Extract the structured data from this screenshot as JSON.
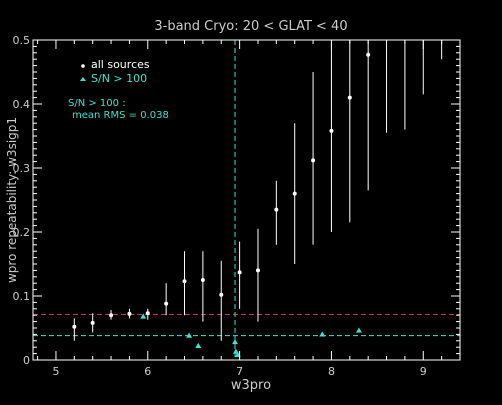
{
  "chart_data": {
    "type": "scatter",
    "title": "3-band Cryo:  20 < GLAT < 40",
    "xlabel": "w3pro",
    "ylabel": "wpro repeatability: w3sigp1",
    "xlim": [
      4.75,
      9.4
    ],
    "ylim": [
      0,
      0.5
    ],
    "x_ticks": [
      5,
      6,
      7,
      8,
      9
    ],
    "y_ticks": [
      0,
      0.1,
      0.2,
      0.3,
      0.4,
      0.5
    ],
    "x_tick_labels": [
      "5",
      "6",
      "7",
      "8",
      "9"
    ],
    "y_tick_labels": [
      "0",
      "0.1",
      "0.2",
      "0.3",
      "0.4",
      "0.5"
    ],
    "legend": {
      "position": "top-left",
      "entries": [
        {
          "label": "all sources",
          "marker": "dot",
          "color": "#ffffff"
        },
        {
          "label": "S/N > 100",
          "marker": "triangle",
          "color": "#40e0d0"
        }
      ]
    },
    "annotation": {
      "lines": [
        "S/N > 100 :",
        "mean RMS =  0.038"
      ],
      "color": "#40e0d0"
    },
    "series": [
      {
        "name": "all sources",
        "color": "#ffffff",
        "marker": "dot",
        "points": [
          {
            "x": 5.2,
            "y": 0.052,
            "lo": 0.03,
            "hi": 0.065
          },
          {
            "x": 5.4,
            "y": 0.058,
            "lo": 0.043,
            "hi": 0.073
          },
          {
            "x": 5.6,
            "y": 0.07,
            "lo": 0.063,
            "hi": 0.078
          },
          {
            "x": 5.8,
            "y": 0.072,
            "lo": 0.065,
            "hi": 0.08
          },
          {
            "x": 6.0,
            "y": 0.073,
            "lo": 0.063,
            "hi": 0.08
          },
          {
            "x": 6.2,
            "y": 0.088,
            "lo": 0.07,
            "hi": 0.12
          },
          {
            "x": 6.4,
            "y": 0.123,
            "lo": 0.07,
            "hi": 0.17
          },
          {
            "x": 6.6,
            "y": 0.125,
            "lo": 0.06,
            "hi": 0.17
          },
          {
            "x": 6.8,
            "y": 0.102,
            "lo": 0.03,
            "hi": 0.155
          },
          {
            "x": 7.0,
            "y": 0.137,
            "lo": 0.08,
            "hi": 0.185
          },
          {
            "x": 7.2,
            "y": 0.14,
            "lo": 0.06,
            "hi": 0.205
          },
          {
            "x": 7.4,
            "y": 0.235,
            "lo": 0.18,
            "hi": 0.28
          },
          {
            "x": 7.6,
            "y": 0.26,
            "lo": 0.15,
            "hi": 0.37
          },
          {
            "x": 7.8,
            "y": 0.312,
            "lo": 0.18,
            "hi": 0.45
          },
          {
            "x": 8.0,
            "y": 0.358,
            "lo": 0.2,
            "hi": 0.5
          },
          {
            "x": 8.2,
            "y": 0.41,
            "lo": 0.215,
            "hi": 0.5
          },
          {
            "x": 8.4,
            "y": 0.477,
            "lo": 0.265,
            "hi": 0.5
          },
          {
            "x": 8.6,
            "y": null,
            "lo": 0.355,
            "hi": 0.5
          },
          {
            "x": 8.8,
            "y": null,
            "lo": 0.36,
            "hi": 0.5
          },
          {
            "x": 9.0,
            "y": null,
            "lo": 0.415,
            "hi": 0.5
          },
          {
            "x": 9.2,
            "y": null,
            "lo": 0.47,
            "hi": 0.5
          }
        ]
      },
      {
        "name": "S/N > 100",
        "color": "#40e0d0",
        "marker": "triangle",
        "points": [
          {
            "x": 5.95,
            "y": 0.068
          },
          {
            "x": 6.45,
            "y": 0.038
          },
          {
            "x": 6.55,
            "y": 0.022
          },
          {
            "x": 6.95,
            "y": 0.028
          },
          {
            "x": 6.96,
            "y": 0.013
          },
          {
            "x": 6.98,
            "y": 0.008
          },
          {
            "x": 7.9,
            "y": 0.04
          },
          {
            "x": 8.3,
            "y": 0.046
          }
        ]
      }
    ],
    "reference_lines": [
      {
        "orientation": "horizontal",
        "value": 0.071,
        "color": "#e03030",
        "style": "dashed"
      },
      {
        "orientation": "horizontal",
        "value": 0.038,
        "color": "#40e0d0",
        "style": "dashed"
      },
      {
        "orientation": "vertical",
        "value": 6.95,
        "color": "#40e0d0",
        "style": "dashed"
      }
    ]
  }
}
